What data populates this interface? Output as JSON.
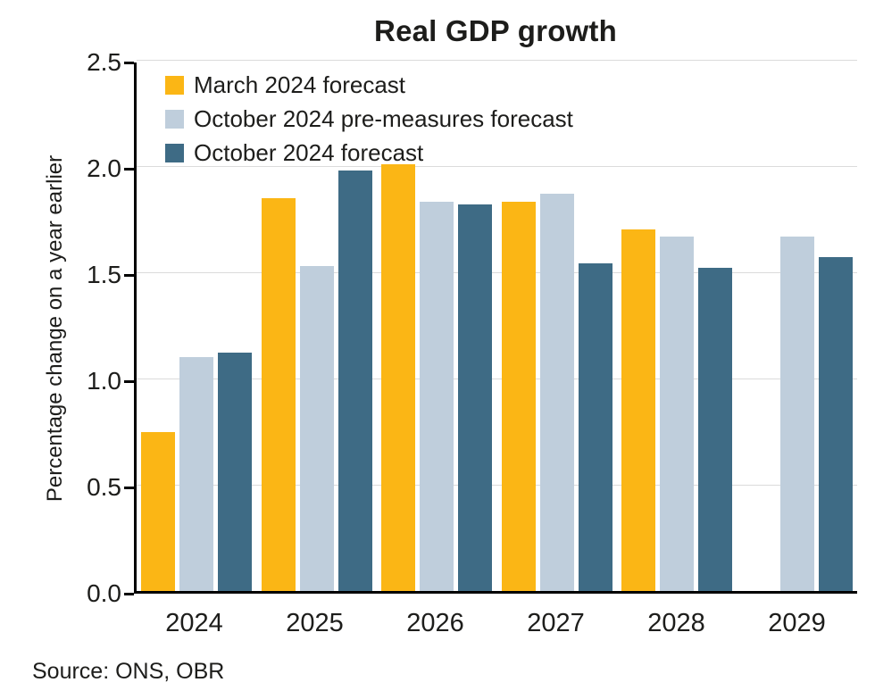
{
  "source_note": "Source: ONS, OBR",
  "chart_data": {
    "type": "bar",
    "title": "Real GDP growth",
    "xlabel": "",
    "ylabel": "Percentage change on a year earlier",
    "ylim": [
      0,
      2.5
    ],
    "yticks": [
      0.0,
      0.5,
      1.0,
      1.5,
      2.0,
      2.5
    ],
    "grid": true,
    "legend_position": "top-left",
    "categories": [
      "2024",
      "2025",
      "2026",
      "2027",
      "2028",
      "2029"
    ],
    "series": [
      {
        "name": "March 2024 forecast",
        "color": "#FBB615",
        "values": [
          0.75,
          1.85,
          2.01,
          1.83,
          1.7,
          null
        ]
      },
      {
        "name": "October 2024 pre-measures forecast",
        "color": "#BFCEDC",
        "values": [
          1.1,
          1.53,
          1.83,
          1.87,
          1.67,
          1.67
        ]
      },
      {
        "name": "October 2024 forecast",
        "color": "#3E6B85",
        "values": [
          1.12,
          1.98,
          1.82,
          1.54,
          1.52,
          1.57
        ]
      }
    ]
  }
}
